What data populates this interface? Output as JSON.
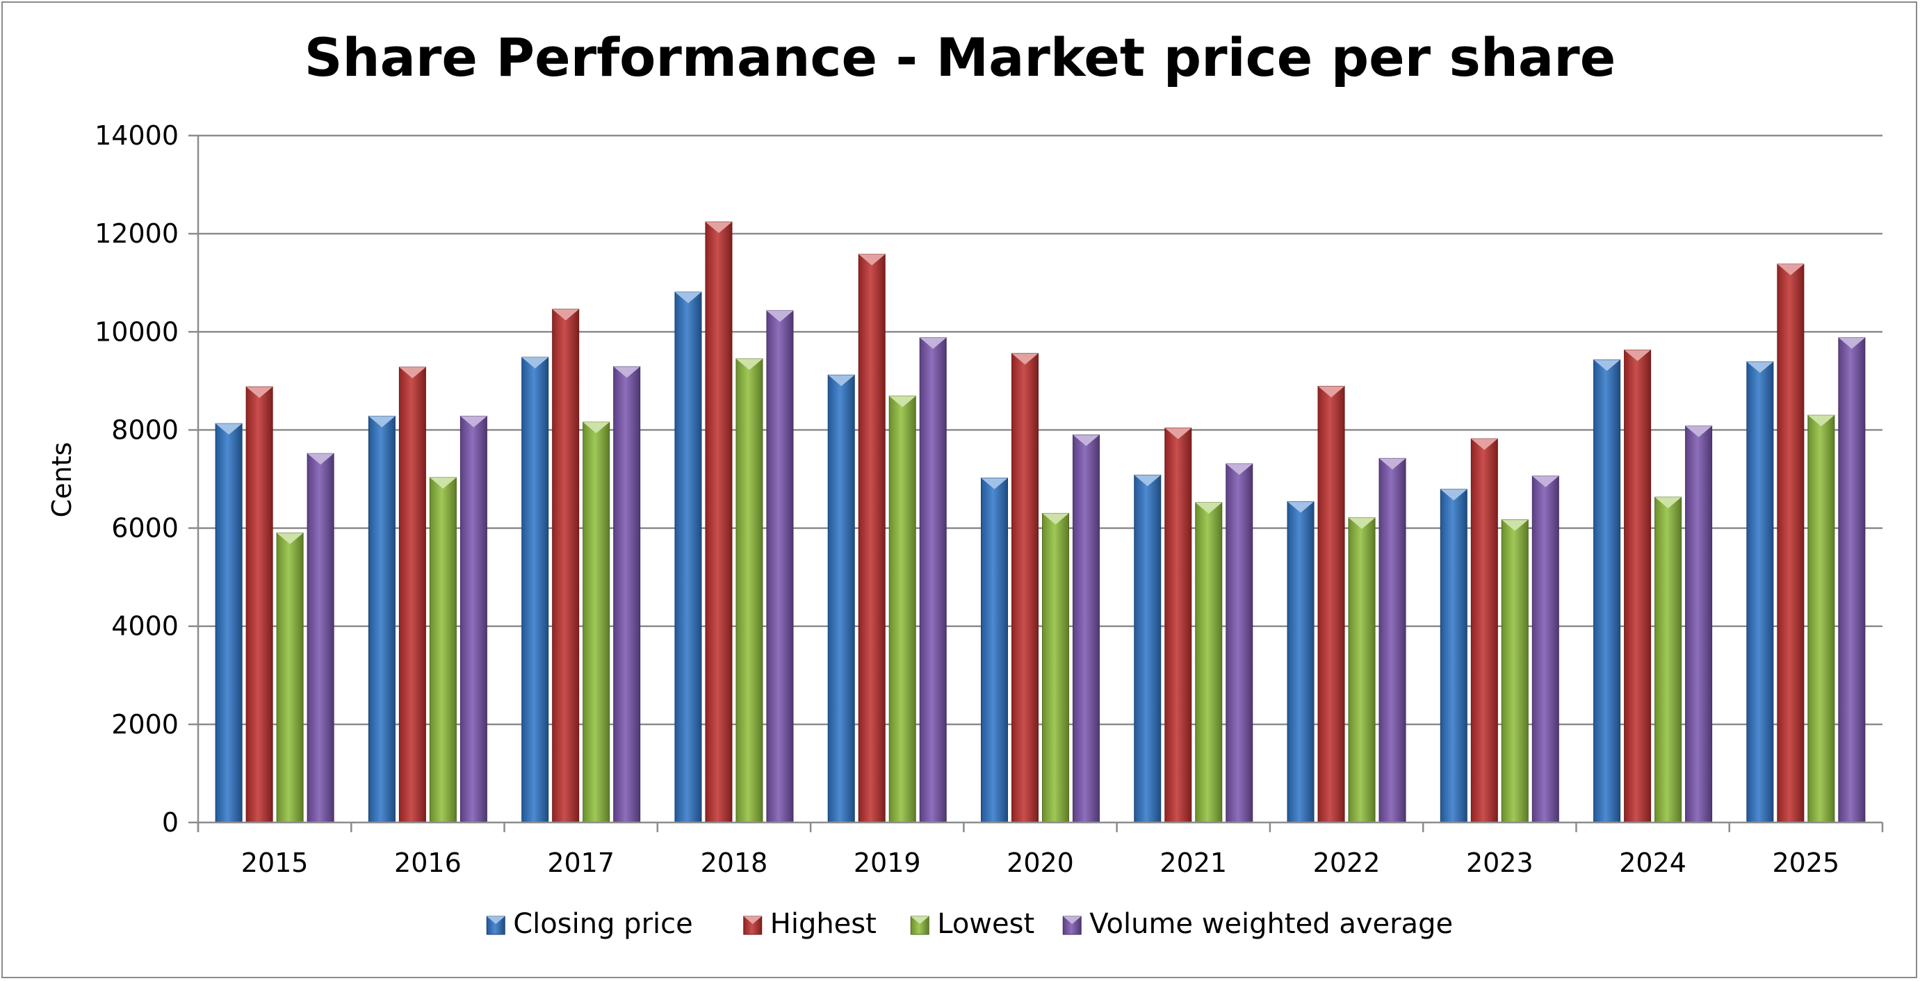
{
  "chart_data": {
    "type": "bar",
    "title": "Share Performance - Market price per share",
    "xlabel": "",
    "ylabel": "Cents",
    "ylim": [
      0,
      14000
    ],
    "yticks": [
      0,
      2000,
      4000,
      6000,
      8000,
      10000,
      12000,
      14000
    ],
    "grid": true,
    "legend_position": "bottom",
    "categories": [
      "2015",
      "2016",
      "2017",
      "2018",
      "2019",
      "2020",
      "2021",
      "2022",
      "2023",
      "2024",
      "2025"
    ],
    "series": [
      {
        "name": "Closing price",
        "color": "#2e75c8",
        "values": [
          8130,
          8280,
          9480,
          10810,
          9120,
          7020,
          7080,
          6540,
          6790,
          9430,
          9390
        ]
      },
      {
        "name": "Highest",
        "color": "#c0302e",
        "values": [
          8880,
          9280,
          10460,
          12240,
          11580,
          9560,
          8040,
          8890,
          7820,
          9630,
          11380
        ]
      },
      {
        "name": "Lowest",
        "color": "#8fbe3a",
        "values": [
          5900,
          7030,
          8160,
          9450,
          8690,
          6300,
          6520,
          6210,
          6170,
          6630,
          8300
        ]
      },
      {
        "name": "Volume weighted average",
        "color": "#7a55b0",
        "values": [
          7520,
          8280,
          9290,
          10430,
          9880,
          7900,
          7310,
          7420,
          7060,
          8080,
          9880
        ]
      }
    ]
  }
}
